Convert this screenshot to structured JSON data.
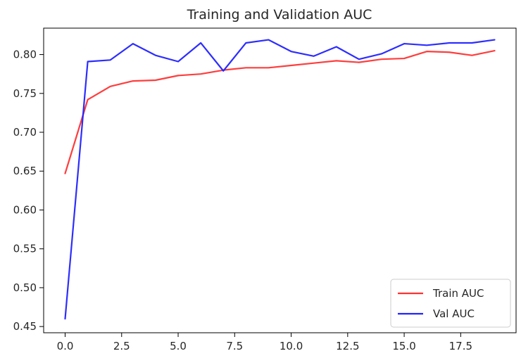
{
  "chart_data": {
    "type": "line",
    "title": "Training and Validation AUC",
    "xlabel": "",
    "ylabel": "",
    "xlim": [
      -0.95,
      19.95
    ],
    "ylim": [
      0.442,
      0.834
    ],
    "x_ticks": [
      0.0,
      2.5,
      5.0,
      7.5,
      10.0,
      12.5,
      15.0,
      17.5
    ],
    "x_tick_labels": [
      "0.0",
      "2.5",
      "5.0",
      "7.5",
      "10.0",
      "12.5",
      "15.0",
      "17.5"
    ],
    "y_ticks": [
      0.45,
      0.5,
      0.55,
      0.6,
      0.65,
      0.7,
      0.75,
      0.8
    ],
    "y_tick_labels": [
      "0.45",
      "0.50",
      "0.55",
      "0.60",
      "0.65",
      "0.70",
      "0.75",
      "0.80"
    ],
    "grid": false,
    "legend_position": "lower-right",
    "x": [
      0,
      1,
      2,
      3,
      4,
      5,
      6,
      7,
      8,
      9,
      10,
      11,
      12,
      13,
      14,
      15,
      16,
      17,
      18,
      19
    ],
    "series": [
      {
        "name": "Train AUC",
        "color": "#ff3333",
        "values": [
          0.647,
          0.742,
          0.759,
          0.766,
          0.767,
          0.773,
          0.775,
          0.78,
          0.783,
          0.783,
          0.786,
          0.789,
          0.792,
          0.79,
          0.794,
          0.795,
          0.804,
          0.803,
          0.799,
          0.805
        ]
      },
      {
        "name": "Val AUC",
        "color": "#2222ff",
        "values": [
          0.46,
          0.791,
          0.793,
          0.814,
          0.799,
          0.791,
          0.815,
          0.779,
          0.815,
          0.819,
          0.804,
          0.798,
          0.81,
          0.794,
          0.801,
          0.814,
          0.812,
          0.815,
          0.815,
          0.819
        ]
      }
    ]
  }
}
